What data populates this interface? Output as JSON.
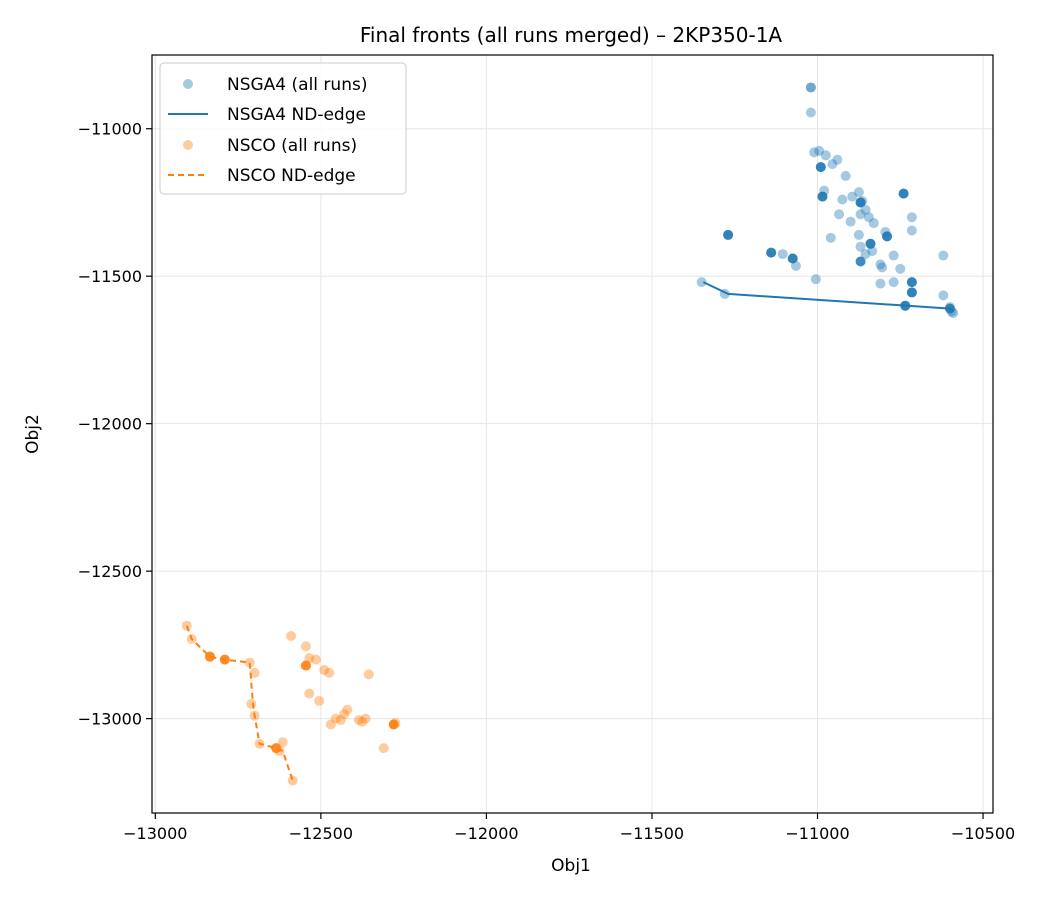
{
  "chart_data": {
    "type": "scatter",
    "title": "Final fronts (all runs merged) – 2KP350-1A",
    "xlabel": "Obj1",
    "ylabel": "Obj2",
    "xlim": [
      -13010,
      -10470
    ],
    "ylim": [
      -13320,
      -10750
    ],
    "grid": true,
    "legend_position": "top-left",
    "xticks": [
      -13000,
      -12500,
      -12000,
      -11500,
      -11000,
      -10500
    ],
    "xtick_labels": [
      "−13000",
      "−12500",
      "−12000",
      "−11500",
      "−11000",
      "−10500"
    ],
    "yticks": [
      -13000,
      -12500,
      -12000,
      -11500,
      -11000
    ],
    "ytick_labels": [
      "−13000",
      "−12500",
      "−12000",
      "−11500",
      "−11000"
    ],
    "series": [
      {
        "name": "NSGA4 (all runs)",
        "kind": "scatter",
        "color": "#1f77b4",
        "points": [
          [
            -11020,
            -10860
          ],
          [
            -11020,
            -10860
          ],
          [
            -11020,
            -10945
          ],
          [
            -11010,
            -11080
          ],
          [
            -10995,
            -11075
          ],
          [
            -10975,
            -11090
          ],
          [
            -10955,
            -11120
          ],
          [
            -10940,
            -11105
          ],
          [
            -10990,
            -11130
          ],
          [
            -10980,
            -11210
          ],
          [
            -10985,
            -11230
          ],
          [
            -10915,
            -11160
          ],
          [
            -10925,
            -11240
          ],
          [
            -10895,
            -11230
          ],
          [
            -10875,
            -11215
          ],
          [
            -10870,
            -11250
          ],
          [
            -10870,
            -11290
          ],
          [
            -10855,
            -11275
          ],
          [
            -10845,
            -11300
          ],
          [
            -10935,
            -11290
          ],
          [
            -10900,
            -11315
          ],
          [
            -10830,
            -11320
          ],
          [
            -10865,
            -11245
          ],
          [
            -10740,
            -11220
          ],
          [
            -10715,
            -11300
          ],
          [
            -10715,
            -11345
          ],
          [
            -10795,
            -11350
          ],
          [
            -10790,
            -11365
          ],
          [
            -10875,
            -11360
          ],
          [
            -10960,
            -11370
          ],
          [
            -10870,
            -11400
          ],
          [
            -10840,
            -11390
          ],
          [
            -10835,
            -11415
          ],
          [
            -10855,
            -11425
          ],
          [
            -10770,
            -11430
          ],
          [
            -10810,
            -11460
          ],
          [
            -10805,
            -11470
          ],
          [
            -10750,
            -11475
          ],
          [
            -10620,
            -11430
          ],
          [
            -10810,
            -11525
          ],
          [
            -10770,
            -11520
          ],
          [
            -10715,
            -11520
          ],
          [
            -10715,
            -11555
          ],
          [
            -10620,
            -11565
          ],
          [
            -11270,
            -11360
          ],
          [
            -11140,
            -11420
          ],
          [
            -11105,
            -11425
          ],
          [
            -11075,
            -11440
          ],
          [
            -11065,
            -11465
          ],
          [
            -11005,
            -11510
          ],
          [
            -11350,
            -11520
          ],
          [
            -11280,
            -11560
          ],
          [
            -10735,
            -11600
          ],
          [
            -10600,
            -11605
          ],
          [
            -10595,
            -11620
          ],
          [
            -10590,
            -11625
          ]
        ],
        "nondominated_points": [
          [
            -10990,
            -11130
          ],
          [
            -10985,
            -11230
          ],
          [
            -10870,
            -11250
          ],
          [
            -10790,
            -11365
          ],
          [
            -10840,
            -11390
          ],
          [
            -11270,
            -11360
          ],
          [
            -11140,
            -11420
          ],
          [
            -11075,
            -11440
          ],
          [
            -10870,
            -11450
          ],
          [
            -10715,
            -11520
          ],
          [
            -10715,
            -11555
          ],
          [
            -10740,
            -11220
          ],
          [
            -10735,
            -11600
          ],
          [
            -10600,
            -11610
          ]
        ]
      },
      {
        "name": "NSGA4 ND-edge",
        "kind": "line",
        "style": "solid",
        "color": "#1f77b4",
        "points": [
          [
            -11345,
            -11520
          ],
          [
            -11270,
            -11560
          ],
          [
            -10600,
            -11610
          ],
          [
            -10590,
            -11620
          ]
        ]
      },
      {
        "name": "NSCO (all runs)",
        "kind": "scatter",
        "color": "#ff7f0e",
        "points": [
          [
            -12905,
            -12685
          ],
          [
            -12890,
            -12730
          ],
          [
            -12835,
            -12790
          ],
          [
            -12790,
            -12800
          ],
          [
            -12715,
            -12810
          ],
          [
            -12700,
            -12845
          ],
          [
            -12710,
            -12950
          ],
          [
            -12700,
            -12990
          ],
          [
            -12685,
            -13085
          ],
          [
            -12635,
            -13100
          ],
          [
            -12625,
            -13110
          ],
          [
            -12615,
            -13080
          ],
          [
            -12585,
            -13210
          ],
          [
            -12590,
            -12720
          ],
          [
            -12545,
            -12755
          ],
          [
            -12535,
            -12795
          ],
          [
            -12545,
            -12820
          ],
          [
            -12515,
            -12800
          ],
          [
            -12490,
            -12835
          ],
          [
            -12475,
            -12845
          ],
          [
            -12535,
            -12915
          ],
          [
            -12505,
            -12940
          ],
          [
            -12470,
            -13020
          ],
          [
            -12455,
            -13000
          ],
          [
            -12440,
            -13005
          ],
          [
            -12430,
            -12985
          ],
          [
            -12420,
            -12970
          ],
          [
            -12385,
            -13005
          ],
          [
            -12375,
            -13010
          ],
          [
            -12365,
            -13000
          ],
          [
            -12355,
            -12850
          ],
          [
            -12310,
            -13100
          ],
          [
            -12280,
            -13020
          ],
          [
            -12275,
            -13015
          ]
        ],
        "nondominated_points": [
          [
            -12835,
            -12790
          ],
          [
            -12790,
            -12800
          ],
          [
            -12545,
            -12820
          ],
          [
            -12635,
            -13100
          ],
          [
            -12280,
            -13020
          ]
        ]
      },
      {
        "name": "NSCO ND-edge",
        "kind": "line",
        "style": "dashed",
        "color": "#ff7f0e",
        "points": [
          [
            -12905,
            -12685
          ],
          [
            -12890,
            -12730
          ],
          [
            -12835,
            -12790
          ],
          [
            -12790,
            -12800
          ],
          [
            -12715,
            -12810
          ],
          [
            -12705,
            -12950
          ],
          [
            -12700,
            -12990
          ],
          [
            -12685,
            -13085
          ],
          [
            -12635,
            -13100
          ],
          [
            -12615,
            -13110
          ],
          [
            -12585,
            -13210
          ]
        ]
      }
    ]
  }
}
